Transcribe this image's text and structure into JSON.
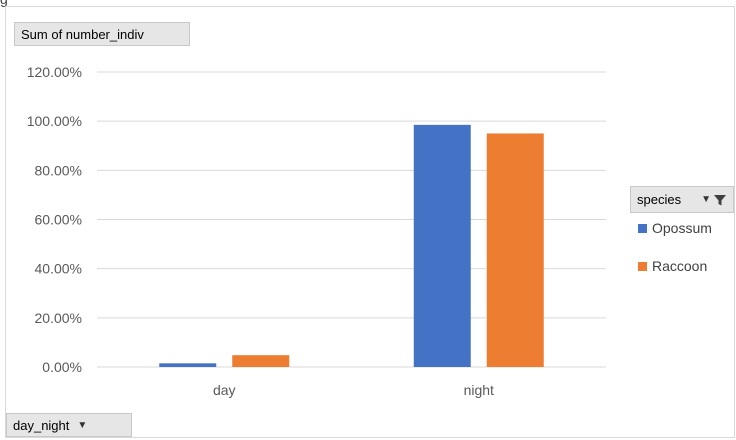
{
  "window": {
    "edge_letter": "g"
  },
  "chart_data": {
    "type": "bar",
    "categories": [
      "day",
      "night"
    ],
    "series": [
      {
        "name": "Opossum",
        "values": [
          1.5,
          98.5
        ],
        "color": "#4472c4"
      },
      {
        "name": "Raccoon",
        "values": [
          4.8,
          95.0
        ],
        "color": "#ed7d31"
      }
    ],
    "ylim": [
      0,
      120
    ],
    "yticks": [
      0,
      20,
      40,
      60,
      80,
      100,
      120
    ],
    "ytick_labels": [
      "0.00%",
      "20.00%",
      "40.00%",
      "60.00%",
      "80.00%",
      "100.00%",
      "120.00%"
    ],
    "grid": true,
    "legend_placement": "right",
    "value_field_label": "Sum of number_indiv",
    "legend_field_label": "species",
    "axis_field_label": "day_night",
    "gridline_color": "#d9d9d9"
  }
}
